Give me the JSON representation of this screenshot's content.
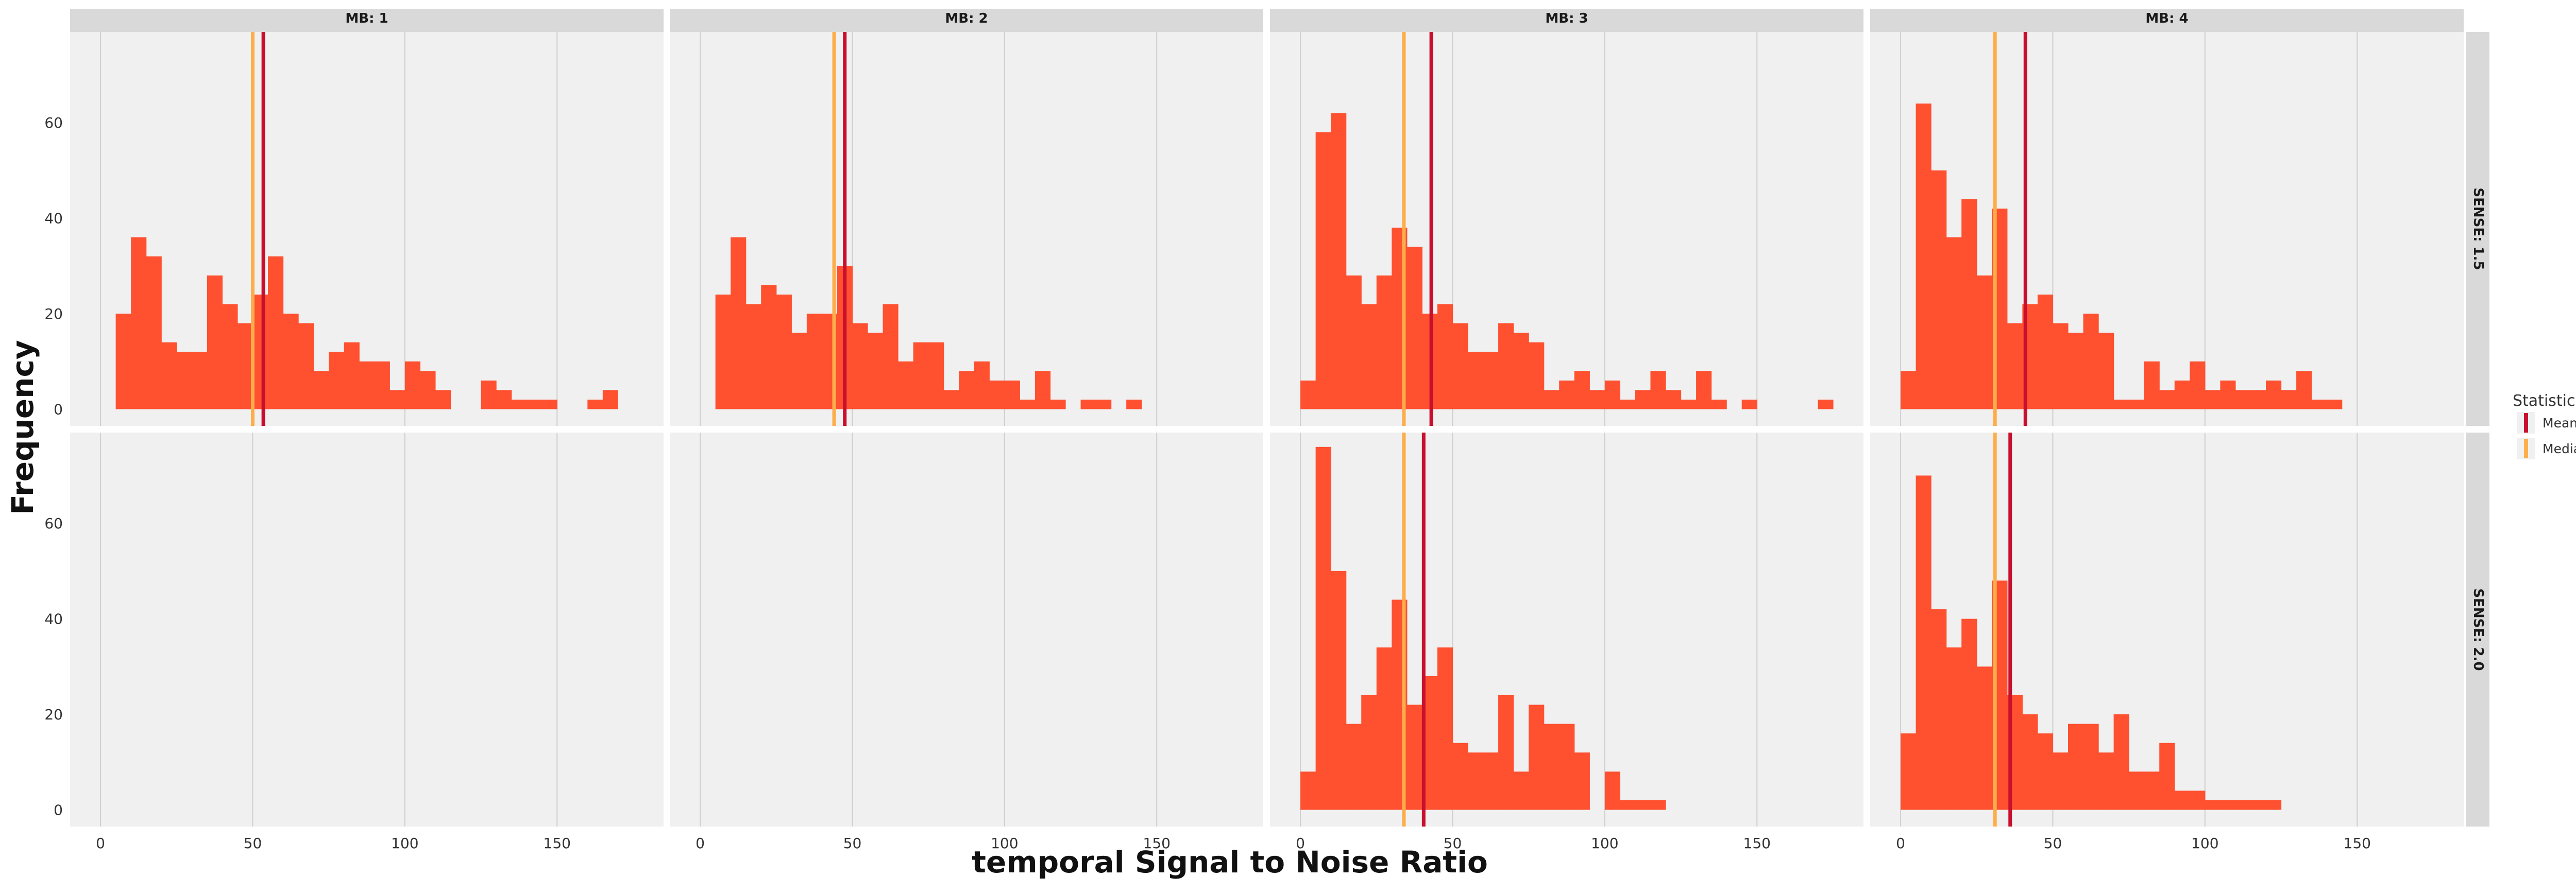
{
  "chart_data": {
    "type": "bar",
    "xlabel": "temporal Signal to Noise Ratio",
    "ylabel": "Frequency",
    "xlim": [
      -10,
      185
    ],
    "ylim": [
      -3.5,
      79
    ],
    "x_ticks": [
      0,
      50,
      100,
      150
    ],
    "y_ticks": [
      0,
      20,
      40,
      60
    ],
    "bin_width": 5,
    "grid": true,
    "facet_columns": [
      "MB: 1",
      "MB: 2",
      "MB: 3",
      "MB: 4"
    ],
    "facet_rows": [
      "SENSE: 1.5",
      "SENSE: 2.0"
    ],
    "legend": {
      "title": "Statistic",
      "position": "right",
      "items": [
        {
          "label": "Mean",
          "color": "#c8102e"
        },
        {
          "label": "Median",
          "color": "#fdae4b"
        }
      ]
    },
    "colors": {
      "bars": "#ff5030",
      "mean": "#c8102e",
      "median": "#fdae4b",
      "panel_bg": "#f0f0f0",
      "strip_bg": "#d9d9d9",
      "grid": "#cfcfcf"
    },
    "panels": [
      {
        "col": "MB: 1",
        "row": "SENSE: 1.5",
        "bins": [
          [
            5,
            20
          ],
          [
            10,
            36
          ],
          [
            15,
            32
          ],
          [
            20,
            14
          ],
          [
            25,
            12
          ],
          [
            30,
            12
          ],
          [
            35,
            28
          ],
          [
            40,
            22
          ],
          [
            45,
            18
          ],
          [
            50,
            24
          ],
          [
            55,
            32
          ],
          [
            60,
            20
          ],
          [
            65,
            18
          ],
          [
            70,
            8
          ],
          [
            75,
            12
          ],
          [
            80,
            14
          ],
          [
            85,
            10
          ],
          [
            90,
            10
          ],
          [
            95,
            4
          ],
          [
            100,
            10
          ],
          [
            105,
            8
          ],
          [
            110,
            4
          ],
          [
            125,
            6
          ],
          [
            130,
            4
          ],
          [
            135,
            2
          ],
          [
            140,
            2
          ],
          [
            145,
            2
          ],
          [
            160,
            2
          ],
          [
            165,
            4
          ]
        ],
        "mean": 53.5,
        "median": 50
      },
      {
        "col": "MB: 2",
        "row": "SENSE: 1.5",
        "bins": [
          [
            5,
            24
          ],
          [
            10,
            36
          ],
          [
            15,
            22
          ],
          [
            20,
            26
          ],
          [
            25,
            24
          ],
          [
            30,
            16
          ],
          [
            35,
            20
          ],
          [
            40,
            20
          ],
          [
            45,
            30
          ],
          [
            50,
            18
          ],
          [
            55,
            16
          ],
          [
            60,
            22
          ],
          [
            65,
            10
          ],
          [
            70,
            14
          ],
          [
            75,
            14
          ],
          [
            80,
            4
          ],
          [
            85,
            8
          ],
          [
            90,
            10
          ],
          [
            95,
            6
          ],
          [
            100,
            6
          ],
          [
            105,
            2
          ],
          [
            110,
            8
          ],
          [
            115,
            2
          ],
          [
            125,
            2
          ],
          [
            130,
            2
          ],
          [
            140,
            2
          ]
        ],
        "mean": 47.5,
        "median": 44
      },
      {
        "col": "MB: 3",
        "row": "SENSE: 1.5",
        "bins": [
          [
            0,
            6
          ],
          [
            5,
            58
          ],
          [
            10,
            62
          ],
          [
            15,
            28
          ],
          [
            20,
            22
          ],
          [
            25,
            28
          ],
          [
            30,
            38
          ],
          [
            35,
            34
          ],
          [
            40,
            20
          ],
          [
            45,
            22
          ],
          [
            50,
            18
          ],
          [
            55,
            12
          ],
          [
            60,
            12
          ],
          [
            65,
            18
          ],
          [
            70,
            16
          ],
          [
            75,
            14
          ],
          [
            80,
            4
          ],
          [
            85,
            6
          ],
          [
            90,
            8
          ],
          [
            95,
            4
          ],
          [
            100,
            6
          ],
          [
            105,
            2
          ],
          [
            110,
            4
          ],
          [
            115,
            8
          ],
          [
            120,
            4
          ],
          [
            125,
            2
          ],
          [
            130,
            8
          ],
          [
            135,
            2
          ],
          [
            145,
            2
          ],
          [
            170,
            2
          ]
        ],
        "mean": 43,
        "median": 34
      },
      {
        "col": "MB: 4",
        "row": "SENSE: 1.5",
        "bins": [
          [
            0,
            8
          ],
          [
            5,
            64
          ],
          [
            10,
            50
          ],
          [
            15,
            36
          ],
          [
            20,
            44
          ],
          [
            25,
            28
          ],
          [
            30,
            42
          ],
          [
            35,
            18
          ],
          [
            40,
            22
          ],
          [
            45,
            24
          ],
          [
            50,
            18
          ],
          [
            55,
            16
          ],
          [
            60,
            20
          ],
          [
            65,
            16
          ],
          [
            70,
            2
          ],
          [
            75,
            2
          ],
          [
            80,
            10
          ],
          [
            85,
            4
          ],
          [
            90,
            6
          ],
          [
            95,
            10
          ],
          [
            100,
            4
          ],
          [
            105,
            6
          ],
          [
            110,
            4
          ],
          [
            115,
            4
          ],
          [
            120,
            6
          ],
          [
            125,
            4
          ],
          [
            130,
            8
          ],
          [
            135,
            2
          ],
          [
            140,
            2
          ]
        ],
        "mean": 41,
        "median": 31
      },
      {
        "col": "MB: 1",
        "row": "SENSE: 2.0",
        "bins": [],
        "mean": null,
        "median": null
      },
      {
        "col": "MB: 2",
        "row": "SENSE: 2.0",
        "bins": [],
        "mean": null,
        "median": null
      },
      {
        "col": "MB: 3",
        "row": "SENSE: 2.0",
        "bins": [
          [
            0,
            8
          ],
          [
            5,
            76
          ],
          [
            10,
            50
          ],
          [
            15,
            18
          ],
          [
            20,
            24
          ],
          [
            25,
            34
          ],
          [
            30,
            44
          ],
          [
            35,
            22
          ],
          [
            40,
            28
          ],
          [
            45,
            34
          ],
          [
            50,
            14
          ],
          [
            55,
            12
          ],
          [
            60,
            12
          ],
          [
            65,
            24
          ],
          [
            70,
            8
          ],
          [
            75,
            22
          ],
          [
            80,
            18
          ],
          [
            85,
            18
          ],
          [
            90,
            12
          ],
          [
            100,
            8
          ],
          [
            105,
            2
          ],
          [
            110,
            2
          ],
          [
            115,
            2
          ]
        ],
        "mean": 40.5,
        "median": 34
      },
      {
        "col": "MB: 4",
        "row": "SENSE: 2.0",
        "bins": [
          [
            0,
            16
          ],
          [
            5,
            70
          ],
          [
            10,
            42
          ],
          [
            15,
            34
          ],
          [
            20,
            40
          ],
          [
            25,
            30
          ],
          [
            30,
            48
          ],
          [
            35,
            24
          ],
          [
            40,
            20
          ],
          [
            45,
            16
          ],
          [
            50,
            12
          ],
          [
            55,
            18
          ],
          [
            60,
            18
          ],
          [
            65,
            12
          ],
          [
            70,
            20
          ],
          [
            75,
            8
          ],
          [
            80,
            8
          ],
          [
            85,
            14
          ],
          [
            90,
            4
          ],
          [
            95,
            4
          ],
          [
            100,
            2
          ],
          [
            105,
            2
          ],
          [
            110,
            2
          ],
          [
            115,
            2
          ],
          [
            120,
            2
          ]
        ],
        "mean": 36,
        "median": 31
      }
    ]
  }
}
